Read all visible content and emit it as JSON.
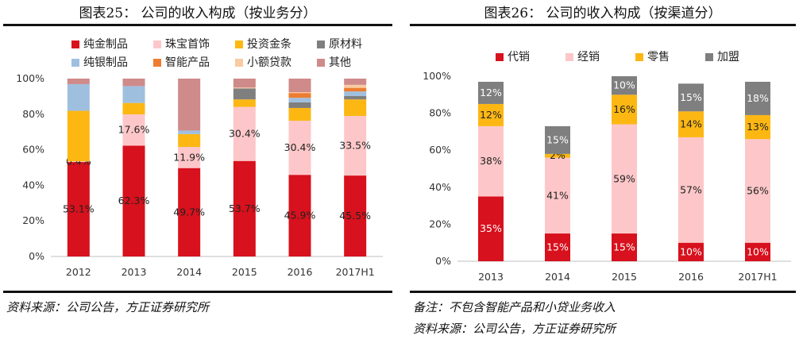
{
  "left": {
    "title": "图表25：  公司的收入构成（按业务分）",
    "source": "资料来源：公司公告，方正证券研究所",
    "chart_data": {
      "type": "bar",
      "stacked": true,
      "categories": [
        "2012",
        "2013",
        "2014",
        "2015",
        "2016",
        "2017H1"
      ],
      "y_ticks": [
        "0%",
        "20%",
        "40%",
        "60%",
        "80%",
        "100%"
      ],
      "ylim": [
        0,
        100
      ],
      "series": [
        {
          "name": "纯金制品",
          "color": "#d7111d",
          "values": [
            53.1,
            62.3,
            49.7,
            53.7,
            45.9,
            45.5
          ],
          "labels": [
            "53.1%",
            "62.3%",
            "49.7%",
            "53.7%",
            "45.9%",
            "45.5%"
          ]
        },
        {
          "name": "珠宝首饰",
          "color": "#fdc7c9",
          "values": [
            0.4,
            17.6,
            11.9,
            30.4,
            30.4,
            33.5
          ],
          "labels": [
            "0.4%",
            "17.6%",
            "11.9%",
            "30.4%",
            "30.4%",
            "33.5%"
          ]
        },
        {
          "name": "投资金条",
          "color": "#fcb713",
          "values": [
            28.4,
            6.4,
            7.2,
            4.2,
            7.2,
            9.3
          ],
          "labels": []
        },
        {
          "name": "原材料",
          "color": "#7f7f7f",
          "values": [
            0,
            0,
            0,
            6.2,
            3.2,
            2.0
          ],
          "labels": []
        },
        {
          "name": "纯银制品",
          "color": "#9fbfdf",
          "values": [
            15.0,
            9.5,
            2.0,
            0,
            2.5,
            2.5
          ],
          "labels": []
        },
        {
          "name": "智能产品",
          "color": "#ed7d31",
          "values": [
            0,
            0,
            0,
            0,
            2.7,
            2.0
          ],
          "labels": []
        },
        {
          "name": "小额贷款",
          "color": "#f8cba0",
          "values": [
            0,
            0,
            0,
            0.5,
            0.5,
            1.7
          ],
          "labels": []
        },
        {
          "name": "其他",
          "color": "#cf8a8a",
          "values": [
            3.1,
            4.2,
            29.2,
            5.0,
            7.6,
            3.5
          ],
          "labels": []
        }
      ]
    }
  },
  "right": {
    "title": "图表26：  公司的收入构成（按渠道分）",
    "note": "备注：不包含智能产品和小贷业务收入",
    "source": "资料来源：公司公告，方正证券研究所",
    "chart_data": {
      "type": "bar",
      "stacked": true,
      "categories": [
        "2013",
        "2014",
        "2015",
        "2016",
        "2017H1"
      ],
      "y_ticks": [
        "0%",
        "20%",
        "40%",
        "60%",
        "80%",
        "100%"
      ],
      "ylim": [
        0,
        100
      ],
      "series": [
        {
          "name": "代销",
          "color": "#d7111d",
          "values": [
            35,
            15,
            15,
            10,
            10
          ],
          "labels": [
            "35%",
            "15%",
            "15%",
            "10%",
            "10%"
          ],
          "label_color": "white"
        },
        {
          "name": "经销",
          "color": "#fdc7c9",
          "values": [
            38,
            41,
            59,
            57,
            56
          ],
          "labels": [
            "38%",
            "41%",
            "59%",
            "57%",
            "56%"
          ]
        },
        {
          "name": "零售",
          "color": "#fcb713",
          "values": [
            12,
            2,
            16,
            14,
            13
          ],
          "labels": [
            "12%",
            "2%",
            "16%",
            "14%",
            "13%"
          ]
        },
        {
          "name": "加盟",
          "color": "#7f7f7f",
          "values": [
            12,
            15,
            10,
            15,
            18
          ],
          "labels": [
            "12%",
            "15%",
            "10%",
            "15%",
            "18%"
          ],
          "label_color": "white"
        }
      ]
    }
  }
}
